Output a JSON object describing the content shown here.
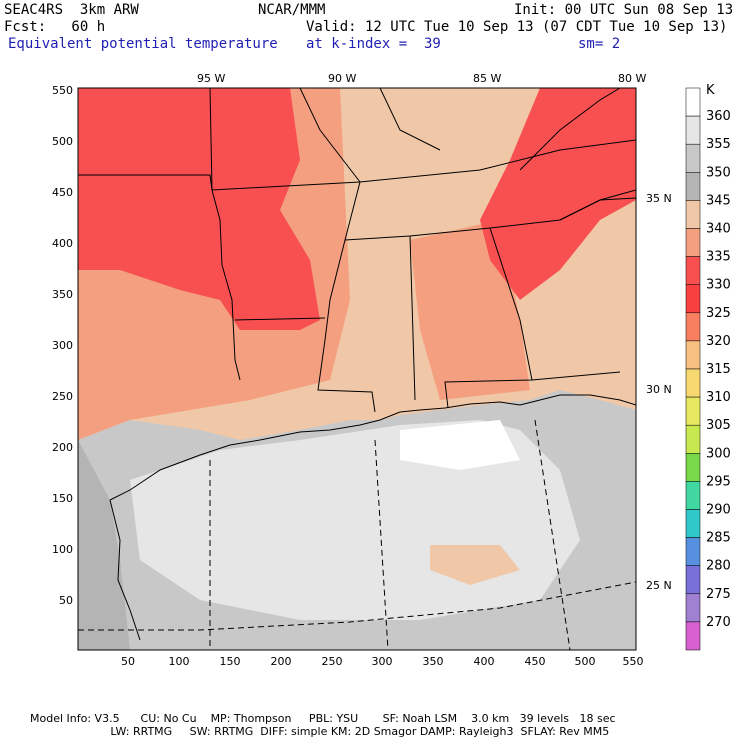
{
  "header": {
    "model": "SEAC4RS  3km ARW",
    "org": "NCAR/MMM",
    "init": "Init: 00 UTC Sun 08 Sep 13",
    "fcst": "Fcst:   60 h",
    "valid": "Valid: 12 UTC Tue 10 Sep 13 (07 CDT Tue 10 Sep 13)",
    "field": "Equivalent potential temperature",
    "level": "at k-index =  39",
    "smooth": "sm= 2"
  },
  "map": {
    "lon_labels": [
      "95 W",
      "90 W",
      "85 W",
      "80 W"
    ],
    "lat_labels": [
      "35 N",
      "30 N",
      "25 N"
    ],
    "x_ticks": [
      "50",
      "100",
      "150",
      "200",
      "250",
      "300",
      "350",
      "400",
      "450",
      "500",
      "550"
    ],
    "y_ticks": [
      "550",
      "500",
      "450",
      "400",
      "350",
      "300",
      "250",
      "200",
      "150",
      "100",
      "50"
    ]
  },
  "colorbar": {
    "unit": "K",
    "levels": [
      "360",
      "355",
      "350",
      "345",
      "340",
      "335",
      "330",
      "325",
      "320",
      "315",
      "310",
      "305",
      "300",
      "295",
      "290",
      "285",
      "280",
      "275",
      "270"
    ],
    "colors": [
      "#ffffff",
      "#e6e6e6",
      "#c8c8c8",
      "#b4b4b4",
      "#f0c8a8",
      "#f4a080",
      "#f85050",
      "#f84040",
      "#f88060",
      "#f8c080",
      "#f8d870",
      "#e8e860",
      "#c8e850",
      "#78d848",
      "#40d8a0",
      "#30c8c8",
      "#5890e0",
      "#7870d8",
      "#a080d0",
      "#d860d0"
    ]
  },
  "footer": {
    "line1": "Model Info: V3.5      CU: No Cu    MP: Thompson     PBL: YSU       SF: Noah LSM    3.0 km   39 levels   18 sec",
    "line2": "                       LW: RRTMG     SW: RRTMG  DIFF: simple KM: 2D Smagor DAMP: Rayleigh3  SFLAY: Rev MM5"
  }
}
